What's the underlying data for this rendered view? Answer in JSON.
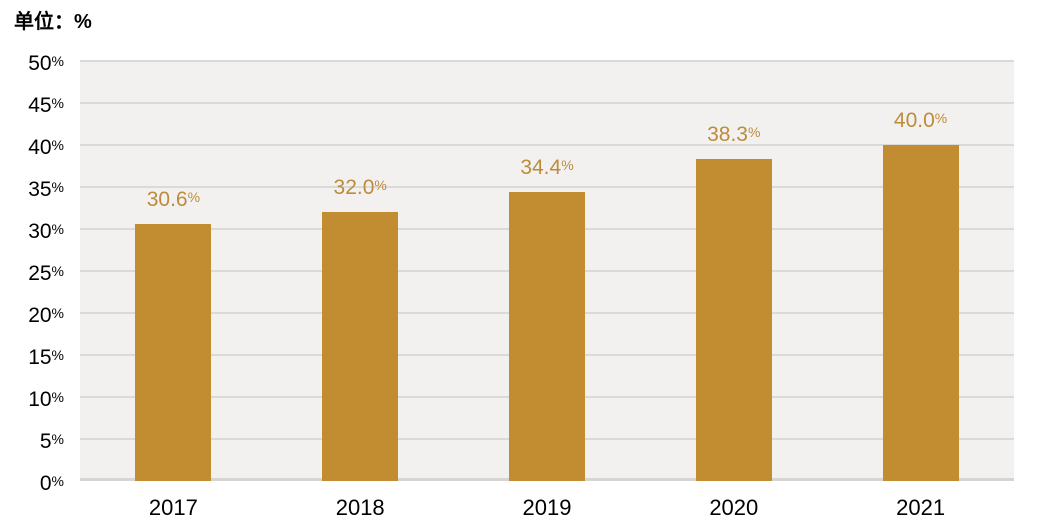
{
  "title": "单位：%",
  "colors": {
    "bar_fill": "#C28C30",
    "data_label": "#BD8C3B",
    "plot_background": "#F2F1F0",
    "gridline": "#DBDAD9",
    "axis_line": "#D7D5D3",
    "text": "#000000",
    "page_background": "#FFFFFF"
  },
  "chart_data": {
    "type": "bar",
    "title": "单位：%",
    "categories": [
      "2017",
      "2018",
      "2019",
      "2020",
      "2021"
    ],
    "values": [
      30.6,
      32.0,
      34.4,
      38.3,
      40.0
    ],
    "data_labels": [
      "30.6%",
      "32.0%",
      "34.4%",
      "38.3%",
      "40.0%"
    ],
    "xlabel": "",
    "ylabel": "",
    "ylim": [
      0,
      50
    ],
    "ytick_step": 5,
    "ytick_labels": [
      "0%",
      "5%",
      "10%",
      "15%",
      "20%",
      "25%",
      "30%",
      "35%",
      "40%",
      "45%",
      "50%"
    ],
    "grid": true,
    "legend_position": "none"
  }
}
